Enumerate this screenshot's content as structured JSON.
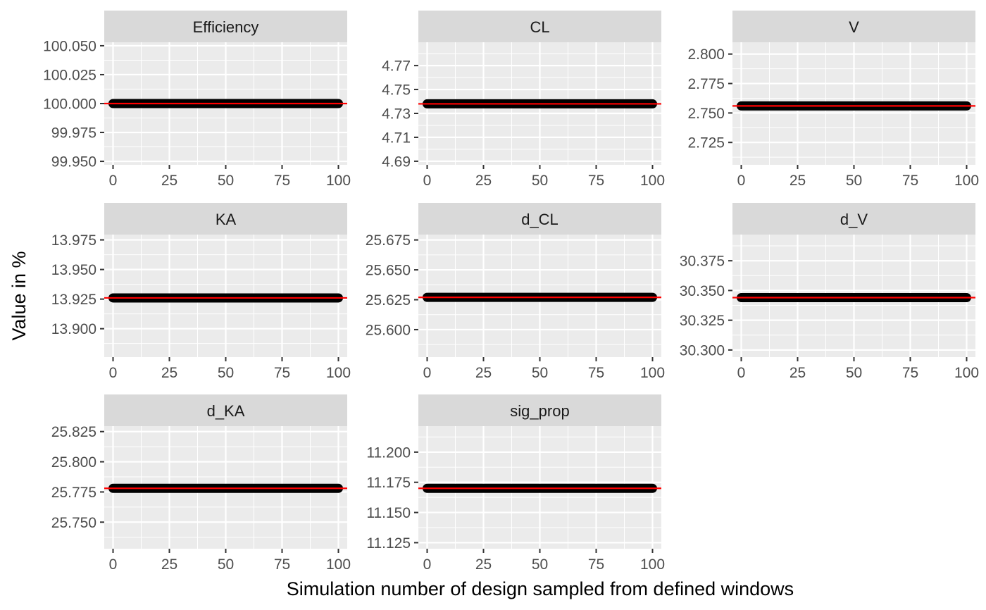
{
  "chart_data": {
    "type": "line",
    "layout": "facet_wrap",
    "xlabel": "Simulation number of design sampled from defined windows",
    "ylabel": "Value in %",
    "xlim": [
      0,
      100
    ],
    "x_ticks": [
      0,
      25,
      50,
      75,
      100
    ],
    "grid": true,
    "colors": {
      "panel": "#ebebeb",
      "strip": "#d9d9d9",
      "grid": "#ffffff",
      "series": "#000000",
      "reference": "#ff0000"
    },
    "panels": [
      {
        "name": "Efficiency",
        "x": [
          0,
          100
        ],
        "y": [
          100.0,
          100.0
        ],
        "reference": 100.0,
        "ylim": [
          99.947,
          100.053
        ],
        "y_ticks": [
          99.95,
          99.975,
          100.0,
          100.025,
          100.05
        ],
        "y_tick_labels": [
          "99.950",
          "99.975",
          "100.000",
          "100.025",
          "100.050"
        ]
      },
      {
        "name": "CL",
        "x": [
          0,
          100
        ],
        "y": [
          4.738,
          4.738
        ],
        "reference": 4.738,
        "ylim": [
          4.687,
          4.7895
        ],
        "y_ticks": [
          4.69,
          4.71,
          4.73,
          4.75,
          4.77
        ],
        "y_tick_labels": [
          "4.69",
          "4.71",
          "4.73",
          "4.75",
          "4.77"
        ]
      },
      {
        "name": "V",
        "x": [
          0,
          100
        ],
        "y": [
          2.756,
          2.756
        ],
        "reference": 2.756,
        "ylim": [
          2.706,
          2.81
        ],
        "y_ticks": [
          2.725,
          2.75,
          2.775,
          2.8
        ],
        "y_tick_labels": [
          "2.725",
          "2.750",
          "2.775",
          "2.800"
        ]
      },
      {
        "name": "KA",
        "x": [
          0,
          100
        ],
        "y": [
          13.926,
          13.926
        ],
        "reference": 13.926,
        "ylim": [
          13.876,
          13.9795
        ],
        "y_ticks": [
          13.9,
          13.925,
          13.95,
          13.975
        ],
        "y_tick_labels": [
          "13.900",
          "13.925",
          "13.950",
          "13.975"
        ]
      },
      {
        "name": "d_CL",
        "x": [
          0,
          100
        ],
        "y": [
          25.627,
          25.627
        ],
        "reference": 25.627,
        "ylim": [
          25.577,
          25.6795
        ],
        "y_ticks": [
          25.6,
          25.625,
          25.65,
          25.675
        ],
        "y_tick_labels": [
          "25.600",
          "25.625",
          "25.650",
          "25.675"
        ]
      },
      {
        "name": "d_V",
        "x": [
          0,
          100
        ],
        "y": [
          30.344,
          30.344
        ],
        "reference": 30.344,
        "ylim": [
          30.294,
          30.397
        ],
        "y_ticks": [
          30.3,
          30.325,
          30.35,
          30.375
        ],
        "y_tick_labels": [
          "30.300",
          "30.325",
          "30.350",
          "30.375"
        ]
      },
      {
        "name": "d_KA",
        "x": [
          0,
          100
        ],
        "y": [
          25.778,
          25.778
        ],
        "reference": 25.778,
        "ylim": [
          25.728,
          25.8295
        ],
        "y_ticks": [
          25.75,
          25.775,
          25.8,
          25.825
        ],
        "y_tick_labels": [
          "25.750",
          "25.775",
          "25.800",
          "25.825"
        ]
      },
      {
        "name": "sig_prop",
        "x": [
          0,
          100
        ],
        "y": [
          11.17,
          11.17
        ],
        "reference": 11.17,
        "ylim": [
          11.12,
          11.2215
        ],
        "y_ticks": [
          11.125,
          11.15,
          11.175,
          11.2
        ],
        "y_tick_labels": [
          "11.125",
          "11.150",
          "11.175",
          "11.200"
        ]
      }
    ]
  }
}
